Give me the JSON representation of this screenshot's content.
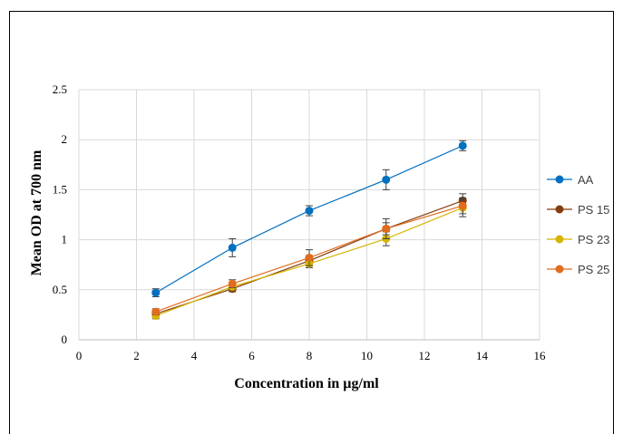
{
  "chart_data": {
    "type": "scatter",
    "title": "",
    "xlabel": "Concentration in µg/ml",
    "ylabel": "Mean OD at 700 nm",
    "xlim": [
      0,
      16
    ],
    "ylim": [
      0,
      2.5
    ],
    "xticks": [
      0,
      2,
      4,
      6,
      8,
      10,
      12,
      14,
      16
    ],
    "yticks": [
      0,
      0.5,
      1,
      1.5,
      2,
      2.5
    ],
    "ytick_labels": [
      "0",
      "0.5",
      "1",
      "1.5",
      "2",
      "2.5"
    ],
    "grid": true,
    "legend_position": "right",
    "x": [
      2.67,
      5.33,
      8.0,
      10.67,
      13.33
    ],
    "series": [
      {
        "name": "AA",
        "color": "#0070C0",
        "values": [
          0.47,
          0.92,
          1.29,
          1.6,
          1.94
        ],
        "errors": [
          0.04,
          0.09,
          0.05,
          0.1,
          0.05
        ]
      },
      {
        "name": "PS 15",
        "color": "#843C0C",
        "values": [
          0.26,
          0.51,
          0.79,
          1.11,
          1.39
        ],
        "errors": [
          0.03,
          0.03,
          0.05,
          0.06,
          0.07
        ]
      },
      {
        "name": "PS 23",
        "color": "#D4B400",
        "values": [
          0.24,
          0.53,
          0.76,
          1.01,
          1.32
        ],
        "errors": [
          0.03,
          0.03,
          0.04,
          0.07,
          0.09
        ]
      },
      {
        "name": "PS 25",
        "color": "#E06C1E",
        "values": [
          0.28,
          0.56,
          0.82,
          1.11,
          1.34
        ],
        "errors": [
          0.03,
          0.04,
          0.08,
          0.1,
          0.08
        ]
      }
    ]
  }
}
